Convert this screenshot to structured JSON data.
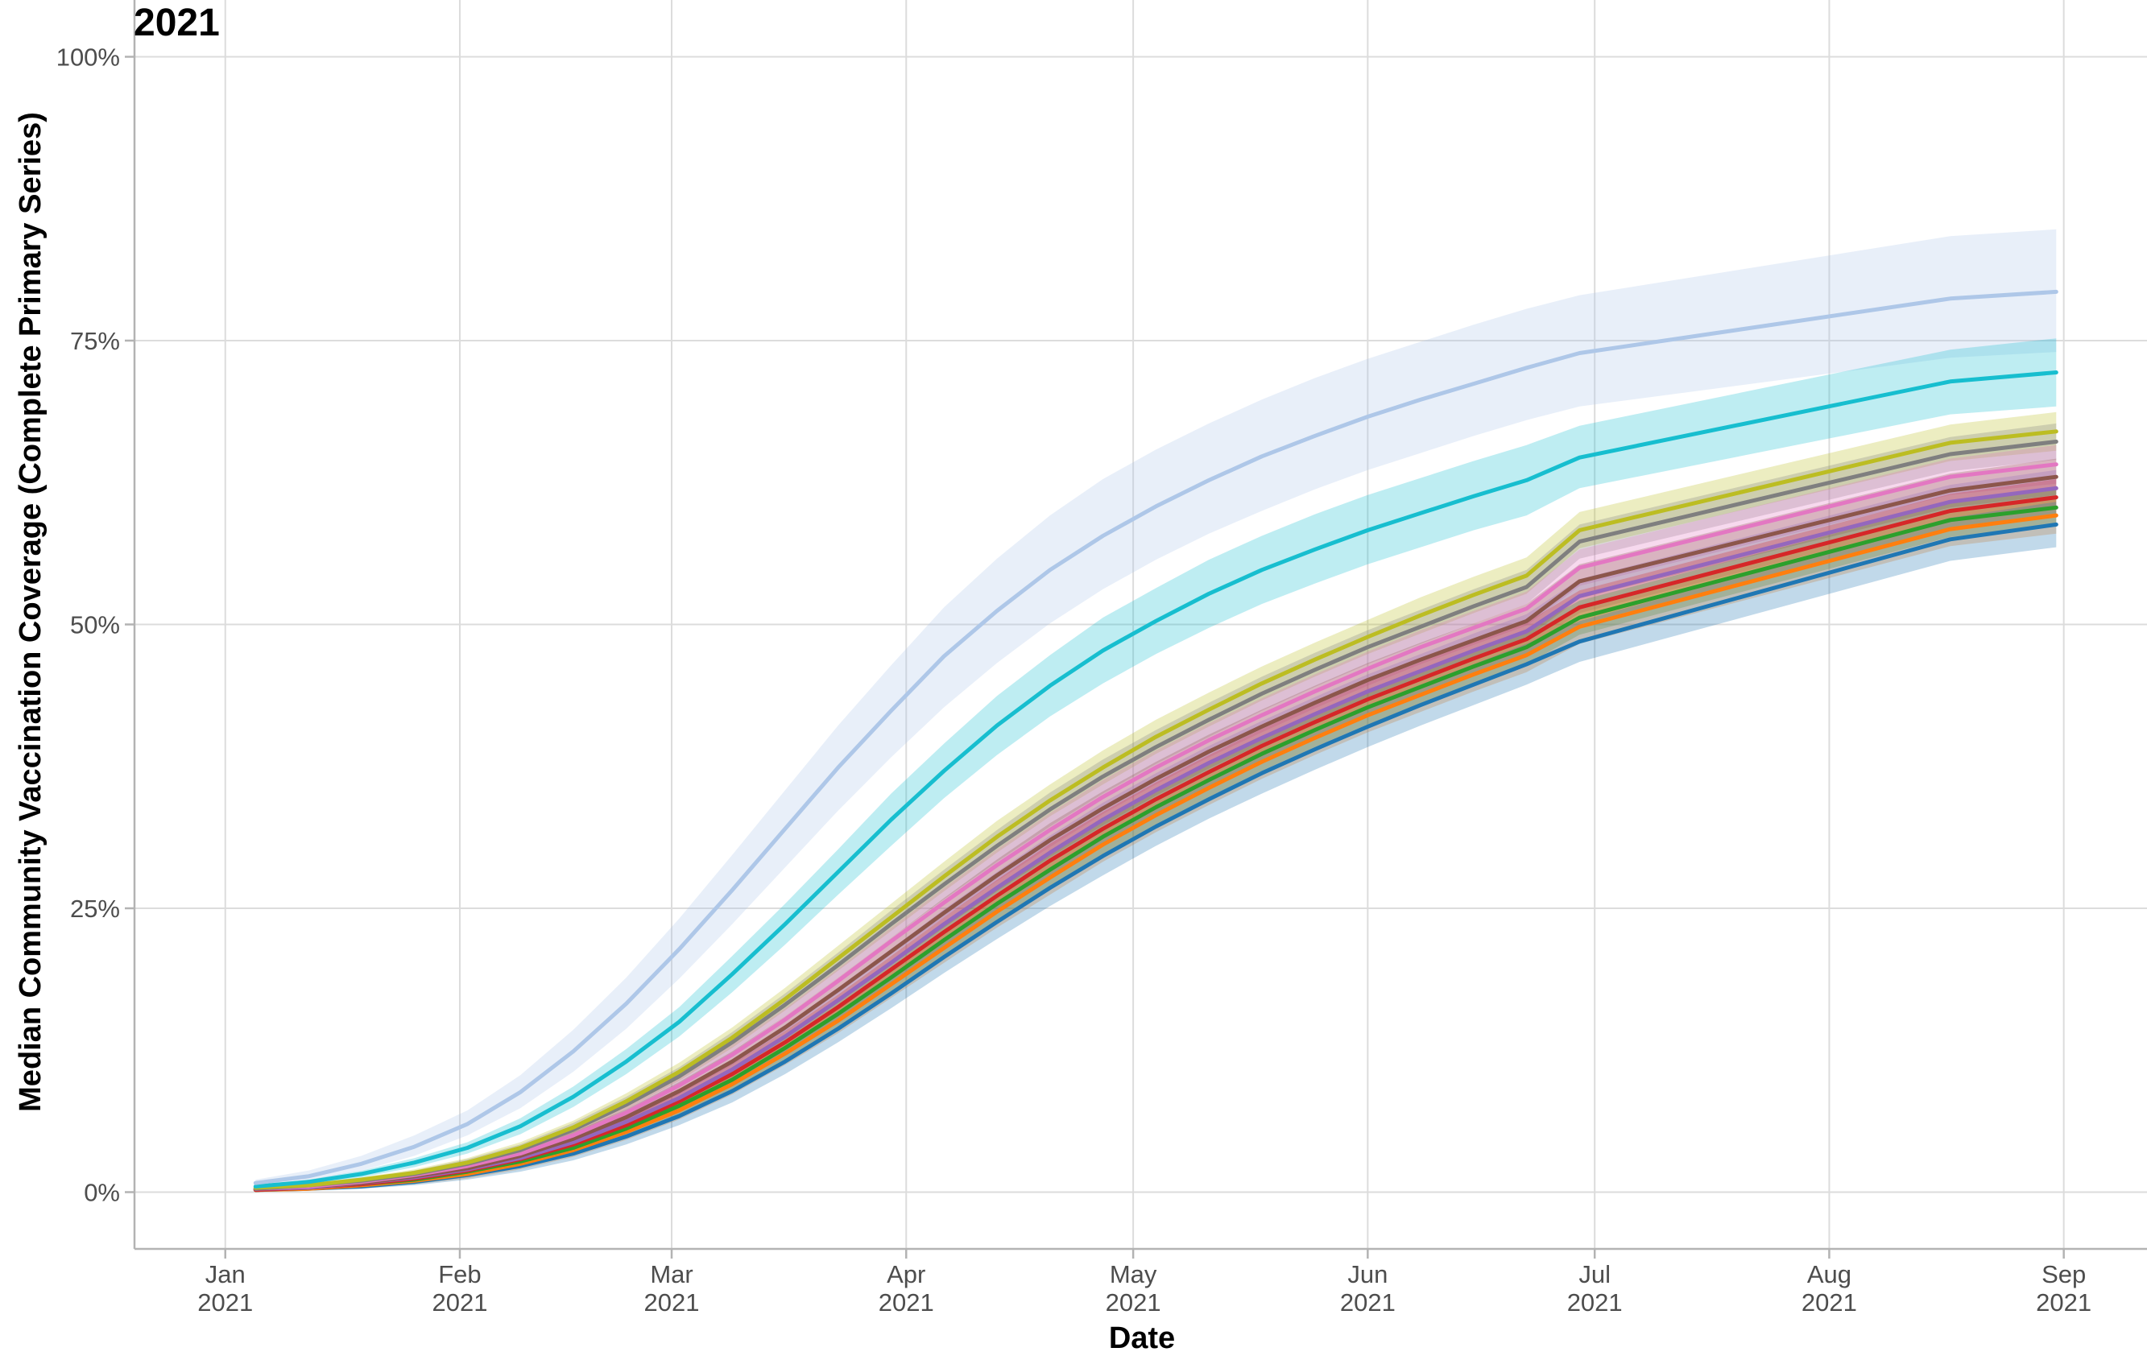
{
  "chart_data": {
    "type": "line",
    "title": "2021",
    "xlabel": "Date",
    "ylabel": "Median Community Vaccination Coverage (Complete Primary Series)",
    "xlim": [
      "2020-12-20",
      "2021-09-12"
    ],
    "ylim": [
      -0.05,
      1.05
    ],
    "x_ticks": [
      {
        "date": "2021-01-01",
        "month": "Jan",
        "year": "2021"
      },
      {
        "date": "2021-02-01",
        "month": "Feb",
        "year": "2021"
      },
      {
        "date": "2021-03-01",
        "month": "Mar",
        "year": "2021"
      },
      {
        "date": "2021-04-01",
        "month": "Apr",
        "year": "2021"
      },
      {
        "date": "2021-05-01",
        "month": "May",
        "year": "2021"
      },
      {
        "date": "2021-06-01",
        "month": "Jun",
        "year": "2021"
      },
      {
        "date": "2021-07-01",
        "month": "Jul",
        "year": "2021"
      },
      {
        "date": "2021-08-01",
        "month": "Aug",
        "year": "2021"
      },
      {
        "date": "2021-09-01",
        "month": "Sep",
        "year": "2021"
      }
    ],
    "y_ticks": [
      {
        "value": 0,
        "label": "0%"
      },
      {
        "value": 0.25,
        "label": "25%"
      },
      {
        "value": 0.5,
        "label": "50%"
      },
      {
        "value": 0.75,
        "label": "75%"
      },
      {
        "value": 1,
        "label": "100%"
      }
    ],
    "grid": true,
    "legend": "none",
    "x": [
      "2021-01-05",
      "2021-01-12",
      "2021-01-19",
      "2021-01-26",
      "2021-02-02",
      "2021-02-09",
      "2021-02-16",
      "2021-02-23",
      "2021-03-02",
      "2021-03-09",
      "2021-03-16",
      "2021-03-23",
      "2021-03-30",
      "2021-04-06",
      "2021-04-13",
      "2021-04-20",
      "2021-04-27",
      "2021-05-04",
      "2021-05-11",
      "2021-05-18",
      "2021-05-25",
      "2021-06-01",
      "2021-06-08",
      "2021-06-15",
      "2021-06-22",
      "2021-06-29",
      "2021-08-17",
      "2021-08-31"
    ],
    "series": [
      {
        "color": "#aec7e8",
        "values": [
          0.008,
          0.014,
          0.025,
          0.04,
          0.06,
          0.088,
          0.124,
          0.166,
          0.214,
          0.266,
          0.32,
          0.374,
          0.424,
          0.472,
          0.512,
          0.548,
          0.578,
          0.604,
          0.627,
          0.648,
          0.666,
          0.683,
          0.698,
          0.712,
          0.726,
          0.739,
          0.787,
          0.793
        ],
        "lower": [
          0.005,
          0.01,
          0.019,
          0.032,
          0.05,
          0.074,
          0.106,
          0.144,
          0.188,
          0.236,
          0.286,
          0.336,
          0.383,
          0.427,
          0.466,
          0.501,
          0.531,
          0.557,
          0.58,
          0.6,
          0.619,
          0.636,
          0.651,
          0.666,
          0.68,
          0.692,
          0.735,
          0.74
        ],
        "upper": [
          0.011,
          0.019,
          0.032,
          0.05,
          0.072,
          0.103,
          0.143,
          0.189,
          0.241,
          0.297,
          0.354,
          0.411,
          0.464,
          0.515,
          0.558,
          0.596,
          0.628,
          0.654,
          0.677,
          0.698,
          0.717,
          0.734,
          0.749,
          0.764,
          0.778,
          0.79,
          0.842,
          0.848
        ]
      },
      {
        "color": "#17becf",
        "values": [
          0.005,
          0.009,
          0.016,
          0.026,
          0.039,
          0.058,
          0.084,
          0.115,
          0.15,
          0.192,
          0.236,
          0.282,
          0.328,
          0.371,
          0.411,
          0.446,
          0.477,
          0.503,
          0.527,
          0.548,
          0.566,
          0.583,
          0.598,
          0.613,
          0.627,
          0.647,
          0.714,
          0.722
        ],
        "lower": [
          0.004,
          0.007,
          0.013,
          0.022,
          0.034,
          0.051,
          0.075,
          0.104,
          0.137,
          0.176,
          0.218,
          0.262,
          0.305,
          0.347,
          0.385,
          0.419,
          0.448,
          0.474,
          0.497,
          0.518,
          0.536,
          0.553,
          0.568,
          0.583,
          0.596,
          0.62,
          0.685,
          0.692
        ],
        "upper": [
          0.006,
          0.011,
          0.019,
          0.03,
          0.044,
          0.065,
          0.093,
          0.126,
          0.163,
          0.208,
          0.254,
          0.302,
          0.351,
          0.395,
          0.437,
          0.473,
          0.506,
          0.532,
          0.557,
          0.578,
          0.597,
          0.614,
          0.629,
          0.644,
          0.658,
          0.675,
          0.742,
          0.752
        ]
      },
      {
        "color": "#bcbd22",
        "values": [
          0.004,
          0.006,
          0.011,
          0.017,
          0.026,
          0.039,
          0.057,
          0.08,
          0.106,
          0.136,
          0.17,
          0.206,
          0.242,
          0.278,
          0.313,
          0.345,
          0.374,
          0.401,
          0.425,
          0.448,
          0.469,
          0.489,
          0.508,
          0.526,
          0.543,
          0.583,
          0.66,
          0.67
        ],
        "lower": [
          0.003,
          0.005,
          0.009,
          0.014,
          0.022,
          0.034,
          0.051,
          0.073,
          0.098,
          0.127,
          0.16,
          0.195,
          0.23,
          0.265,
          0.299,
          0.331,
          0.359,
          0.386,
          0.41,
          0.433,
          0.454,
          0.474,
          0.492,
          0.51,
          0.527,
          0.567,
          0.644,
          0.653
        ],
        "upper": [
          0.005,
          0.007,
          0.013,
          0.02,
          0.03,
          0.044,
          0.063,
          0.087,
          0.114,
          0.145,
          0.18,
          0.217,
          0.254,
          0.291,
          0.327,
          0.359,
          0.389,
          0.416,
          0.44,
          0.463,
          0.484,
          0.504,
          0.524,
          0.542,
          0.559,
          0.599,
          0.676,
          0.687
        ]
      },
      {
        "color": "#7f7f7f",
        "values": [
          0.003,
          0.006,
          0.01,
          0.016,
          0.025,
          0.037,
          0.055,
          0.077,
          0.102,
          0.132,
          0.165,
          0.2,
          0.236,
          0.271,
          0.305,
          0.337,
          0.366,
          0.392,
          0.416,
          0.439,
          0.46,
          0.48,
          0.498,
          0.516,
          0.533,
          0.573,
          0.65,
          0.661
        ],
        "lower": [
          0.002,
          0.005,
          0.008,
          0.013,
          0.021,
          0.032,
          0.049,
          0.07,
          0.094,
          0.123,
          0.155,
          0.189,
          0.224,
          0.258,
          0.291,
          0.322,
          0.351,
          0.377,
          0.401,
          0.424,
          0.445,
          0.465,
          0.483,
          0.501,
          0.518,
          0.558,
          0.635,
          0.645
        ],
        "upper": [
          0.004,
          0.007,
          0.012,
          0.019,
          0.029,
          0.042,
          0.061,
          0.084,
          0.11,
          0.141,
          0.175,
          0.211,
          0.248,
          0.284,
          0.319,
          0.352,
          0.381,
          0.407,
          0.431,
          0.454,
          0.475,
          0.495,
          0.513,
          0.531,
          0.548,
          0.588,
          0.665,
          0.677
        ]
      },
      {
        "color": "#e377c2",
        "values": [
          0.003,
          0.005,
          0.009,
          0.015,
          0.023,
          0.034,
          0.05,
          0.07,
          0.094,
          0.121,
          0.152,
          0.186,
          0.221,
          0.255,
          0.288,
          0.319,
          0.348,
          0.374,
          0.398,
          0.42,
          0.441,
          0.461,
          0.48,
          0.497,
          0.514,
          0.55,
          0.63,
          0.641
        ],
        "lower": [
          0.002,
          0.004,
          0.007,
          0.012,
          0.019,
          0.029,
          0.044,
          0.063,
          0.086,
          0.112,
          0.142,
          0.175,
          0.209,
          0.242,
          0.274,
          0.304,
          0.333,
          0.359,
          0.383,
          0.405,
          0.426,
          0.446,
          0.465,
          0.482,
          0.499,
          0.534,
          0.614,
          0.624
        ],
        "upper": [
          0.004,
          0.006,
          0.011,
          0.018,
          0.027,
          0.039,
          0.056,
          0.077,
          0.102,
          0.13,
          0.162,
          0.197,
          0.233,
          0.268,
          0.302,
          0.334,
          0.363,
          0.389,
          0.413,
          0.435,
          0.456,
          0.476,
          0.495,
          0.512,
          0.529,
          0.566,
          0.646,
          0.658
        ]
      },
      {
        "color": "#8c564b",
        "values": [
          0.003,
          0.005,
          0.008,
          0.014,
          0.021,
          0.032,
          0.047,
          0.066,
          0.089,
          0.115,
          0.145,
          0.178,
          0.212,
          0.246,
          0.279,
          0.31,
          0.338,
          0.364,
          0.388,
          0.41,
          0.431,
          0.451,
          0.469,
          0.486,
          0.503,
          0.538,
          0.618,
          0.63
        ],
        "lower": [
          0.002,
          0.004,
          0.006,
          0.011,
          0.017,
          0.027,
          0.041,
          0.059,
          0.081,
          0.106,
          0.135,
          0.167,
          0.2,
          0.233,
          0.265,
          0.295,
          0.323,
          0.349,
          0.373,
          0.395,
          0.416,
          0.436,
          0.454,
          0.471,
          0.488,
          0.523,
          0.603,
          0.614
        ],
        "upper": [
          0.004,
          0.006,
          0.01,
          0.017,
          0.025,
          0.037,
          0.053,
          0.073,
          0.097,
          0.124,
          0.155,
          0.189,
          0.224,
          0.259,
          0.293,
          0.325,
          0.353,
          0.379,
          0.403,
          0.425,
          0.446,
          0.466,
          0.484,
          0.501,
          0.518,
          0.553,
          0.633,
          0.646
        ]
      },
      {
        "color": "#9467bd",
        "values": [
          0.003,
          0.004,
          0.008,
          0.013,
          0.02,
          0.03,
          0.044,
          0.062,
          0.083,
          0.108,
          0.137,
          0.169,
          0.202,
          0.236,
          0.268,
          0.299,
          0.328,
          0.354,
          0.378,
          0.4,
          0.421,
          0.441,
          0.459,
          0.477,
          0.494,
          0.525,
          0.608,
          0.62
        ],
        "lower": [
          0.002,
          0.003,
          0.006,
          0.01,
          0.016,
          0.025,
          0.038,
          0.055,
          0.075,
          0.099,
          0.127,
          0.158,
          0.19,
          0.223,
          0.254,
          0.284,
          0.313,
          0.339,
          0.363,
          0.385,
          0.406,
          0.426,
          0.444,
          0.462,
          0.479,
          0.51,
          0.593,
          0.604
        ],
        "upper": [
          0.004,
          0.005,
          0.01,
          0.016,
          0.024,
          0.035,
          0.05,
          0.069,
          0.091,
          0.117,
          0.147,
          0.18,
          0.214,
          0.249,
          0.282,
          0.314,
          0.343,
          0.369,
          0.393,
          0.415,
          0.436,
          0.456,
          0.474,
          0.492,
          0.509,
          0.54,
          0.623,
          0.636
        ]
      },
      {
        "color": "#d62728",
        "values": [
          0.002,
          0.004,
          0.007,
          0.012,
          0.019,
          0.029,
          0.042,
          0.059,
          0.08,
          0.104,
          0.132,
          0.163,
          0.196,
          0.229,
          0.261,
          0.292,
          0.32,
          0.346,
          0.37,
          0.393,
          0.414,
          0.434,
          0.452,
          0.47,
          0.487,
          0.515,
          0.6,
          0.612
        ],
        "lower": [
          0.001,
          0.003,
          0.005,
          0.009,
          0.015,
          0.024,
          0.036,
          0.052,
          0.072,
          0.095,
          0.122,
          0.152,
          0.184,
          0.216,
          0.247,
          0.277,
          0.305,
          0.331,
          0.355,
          0.378,
          0.399,
          0.419,
          0.437,
          0.455,
          0.472,
          0.5,
          0.585,
          0.596
        ],
        "upper": [
          0.003,
          0.005,
          0.009,
          0.015,
          0.023,
          0.034,
          0.048,
          0.066,
          0.088,
          0.113,
          0.142,
          0.174,
          0.208,
          0.242,
          0.275,
          0.307,
          0.335,
          0.361,
          0.385,
          0.408,
          0.429,
          0.449,
          0.467,
          0.485,
          0.502,
          0.53,
          0.615,
          0.628
        ]
      },
      {
        "color": "#2ca02c",
        "values": [
          0.002,
          0.004,
          0.007,
          0.011,
          0.018,
          0.027,
          0.039,
          0.056,
          0.076,
          0.099,
          0.127,
          0.157,
          0.189,
          0.222,
          0.254,
          0.284,
          0.313,
          0.339,
          0.363,
          0.386,
          0.407,
          0.427,
          0.445,
          0.463,
          0.48,
          0.506,
          0.592,
          0.603
        ],
        "lower": [
          0.001,
          0.003,
          0.005,
          0.008,
          0.014,
          0.022,
          0.033,
          0.049,
          0.068,
          0.09,
          0.117,
          0.146,
          0.177,
          0.209,
          0.24,
          0.269,
          0.298,
          0.324,
          0.348,
          0.371,
          0.392,
          0.412,
          0.43,
          0.448,
          0.465,
          0.491,
          0.577,
          0.587
        ],
        "upper": [
          0.003,
          0.005,
          0.009,
          0.014,
          0.022,
          0.032,
          0.045,
          0.063,
          0.084,
          0.108,
          0.137,
          0.168,
          0.201,
          0.235,
          0.268,
          0.299,
          0.328,
          0.354,
          0.378,
          0.401,
          0.422,
          0.442,
          0.46,
          0.478,
          0.495,
          0.521,
          0.607,
          0.619
        ]
      },
      {
        "color": "#ff7f0e",
        "values": [
          0.002,
          0.003,
          0.006,
          0.01,
          0.016,
          0.025,
          0.037,
          0.053,
          0.072,
          0.095,
          0.122,
          0.151,
          0.183,
          0.215,
          0.247,
          0.277,
          0.306,
          0.332,
          0.356,
          0.379,
          0.4,
          0.42,
          0.438,
          0.456,
          0.473,
          0.498,
          0.584,
          0.596
        ],
        "lower": [
          0.001,
          0.002,
          0.004,
          0.007,
          0.012,
          0.02,
          0.031,
          0.046,
          0.064,
          0.086,
          0.112,
          0.14,
          0.171,
          0.202,
          0.233,
          0.262,
          0.291,
          0.317,
          0.341,
          0.364,
          0.385,
          0.405,
          0.423,
          0.441,
          0.458,
          0.483,
          0.569,
          0.58
        ],
        "upper": [
          0.003,
          0.004,
          0.008,
          0.013,
          0.02,
          0.03,
          0.043,
          0.06,
          0.08,
          0.104,
          0.132,
          0.162,
          0.195,
          0.228,
          0.261,
          0.292,
          0.321,
          0.347,
          0.371,
          0.394,
          0.415,
          0.435,
          0.453,
          0.471,
          0.488,
          0.513,
          0.599,
          0.612
        ]
      },
      {
        "color": "#1f77b4",
        "values": [
          0.002,
          0.003,
          0.005,
          0.009,
          0.015,
          0.023,
          0.034,
          0.049,
          0.067,
          0.089,
          0.115,
          0.144,
          0.175,
          0.207,
          0.238,
          0.268,
          0.296,
          0.322,
          0.346,
          0.369,
          0.39,
          0.41,
          0.429,
          0.447,
          0.465,
          0.485,
          0.575,
          0.588
        ],
        "lower": [
          0.001,
          0.002,
          0.003,
          0.006,
          0.011,
          0.018,
          0.028,
          0.042,
          0.059,
          0.079,
          0.104,
          0.132,
          0.162,
          0.193,
          0.223,
          0.252,
          0.279,
          0.305,
          0.329,
          0.351,
          0.372,
          0.392,
          0.411,
          0.429,
          0.447,
          0.467,
          0.556,
          0.568
        ],
        "upper": [
          0.003,
          0.004,
          0.007,
          0.012,
          0.019,
          0.028,
          0.04,
          0.056,
          0.075,
          0.099,
          0.126,
          0.156,
          0.188,
          0.221,
          0.253,
          0.284,
          0.313,
          0.339,
          0.363,
          0.387,
          0.408,
          0.428,
          0.447,
          0.465,
          0.483,
          0.503,
          0.594,
          0.608
        ]
      }
    ]
  }
}
